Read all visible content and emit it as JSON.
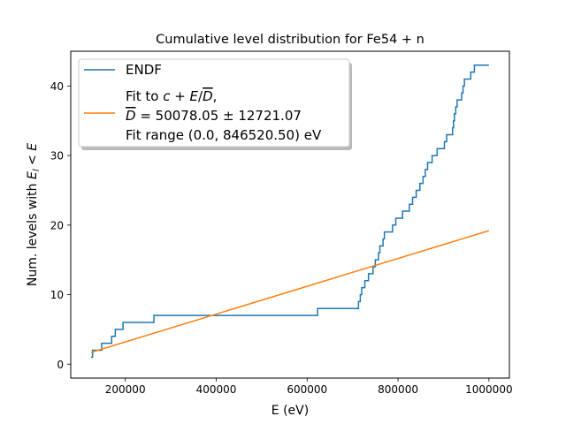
{
  "chart_data": {
    "type": "line",
    "title": "Cumulative level distribution for Fe54 + n",
    "xlabel": "E (eV)",
    "ylabel": "Num. levels with E_l < E",
    "xlim": [
      80000,
      1045000
    ],
    "ylim": [
      -2,
      45
    ],
    "xticks": [
      200000,
      400000,
      600000,
      800000,
      1000000
    ],
    "xtick_labels": [
      "200000",
      "400000",
      "600000",
      "800000",
      "1000000"
    ],
    "yticks": [
      0,
      10,
      20,
      30,
      40
    ],
    "ytick_labels": [
      "0",
      "10",
      "20",
      "30",
      "40"
    ],
    "grid": false,
    "legend_placement": "top-left",
    "series": [
      {
        "name": "ENDF",
        "color": "#1f77b4",
        "style": "step",
        "x": [
          125000,
          128000,
          148000,
          170000,
          175000,
          178000,
          195000,
          263000,
          623000,
          713000,
          717000,
          720000,
          727000,
          735000,
          745000,
          750000,
          757000,
          760000,
          762000,
          767000,
          770000,
          775000,
          782000,
          788000,
          795000,
          800000,
          810000,
          825000,
          832000,
          840000,
          848000,
          855000,
          860000,
          865000,
          870000,
          875000,
          880000,
          886000,
          895000,
          902000,
          907000,
          920000,
          922000,
          924000,
          927000,
          930000,
          940000,
          943000,
          946000,
          960000,
          962000,
          968000,
          975000,
          978000,
          980000,
          982000,
          1000000
        ],
        "y": [
          1,
          2,
          3,
          4,
          4,
          5,
          6,
          7,
          8,
          9,
          10,
          11,
          12,
          13,
          14,
          15,
          16,
          17,
          17,
          18,
          19,
          19,
          19,
          20,
          21,
          21,
          22,
          23,
          24,
          25,
          26,
          27,
          28,
          29,
          29,
          30,
          30,
          31,
          31,
          32,
          33,
          34,
          35,
          36,
          37,
          38,
          39,
          40,
          41,
          42,
          42,
          43,
          43,
          43,
          43,
          43,
          43
        ]
      },
      {
        "name": "Fit to $c + E/\\overline{D}$, $\\overline{D} = 50078.05 \\pm 12721.07$ Fit range (0.0, 846520.50) eV",
        "color": "#ff7f0e",
        "style": "line",
        "x": [
          125000,
          1000000
        ],
        "y": [
          1.7,
          19.2
        ]
      }
    ],
    "legend": {
      "entry1": "ENDF",
      "entry2_line1_prefix": "Fit to ",
      "entry2_line1_formula": "c + E/D,",
      "entry2_line2_formula": "D = 50078.05 ± 12721.07",
      "entry2_line3": "Fit range (0.0, 846520.50) eV"
    }
  }
}
